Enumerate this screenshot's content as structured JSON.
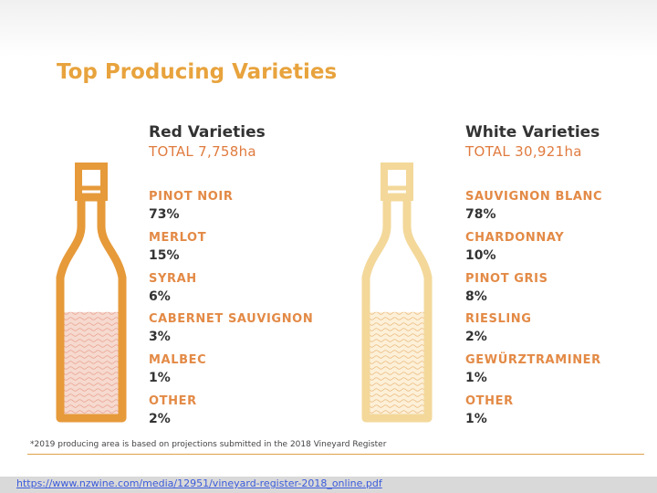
{
  "title": "Top Producing Varieties",
  "footnote": "*2019 producing area is based on projections submitted in the 2018 Vineyard Register",
  "source_url": "https://www.nzwine.com/media/12951/vineyard-register-2018_online.pdf",
  "colors": {
    "title": "#e8a33d",
    "red_bottle": "#e69a3a",
    "red_fill": "#f6d9cf",
    "white_bottle": "#f3d89a",
    "white_fill": "#fdf0d8",
    "name_text": "#e38a46",
    "total_text": "#e07b3f"
  },
  "chart_data": {
    "type": "table",
    "groups": [
      {
        "heading": "Red Varieties",
        "total": "TOTAL 7,758ha",
        "fill_level": 0.48,
        "items": [
          {
            "name": "PINOT NOIR",
            "percent": "73%"
          },
          {
            "name": "MERLOT",
            "percent": "15%"
          },
          {
            "name": "SYRAH",
            "percent": "6%"
          },
          {
            "name": "CABERNET SAUVIGNON",
            "percent": "3%"
          },
          {
            "name": "MALBEC",
            "percent": "1%"
          },
          {
            "name": "OTHER",
            "percent": "2%"
          }
        ]
      },
      {
        "heading": "White Varieties",
        "total": "TOTAL 30,921ha",
        "fill_level": 0.48,
        "items": [
          {
            "name": "SAUVIGNON BLANC",
            "percent": "78%"
          },
          {
            "name": "CHARDONNAY",
            "percent": "10%"
          },
          {
            "name": "PINOT GRIS",
            "percent": "8%"
          },
          {
            "name": "RIESLING",
            "percent": "2%"
          },
          {
            "name": "GEWÜRZTRAMINER",
            "percent": "1%"
          },
          {
            "name": "OTHER",
            "percent": "1%"
          }
        ]
      }
    ]
  }
}
